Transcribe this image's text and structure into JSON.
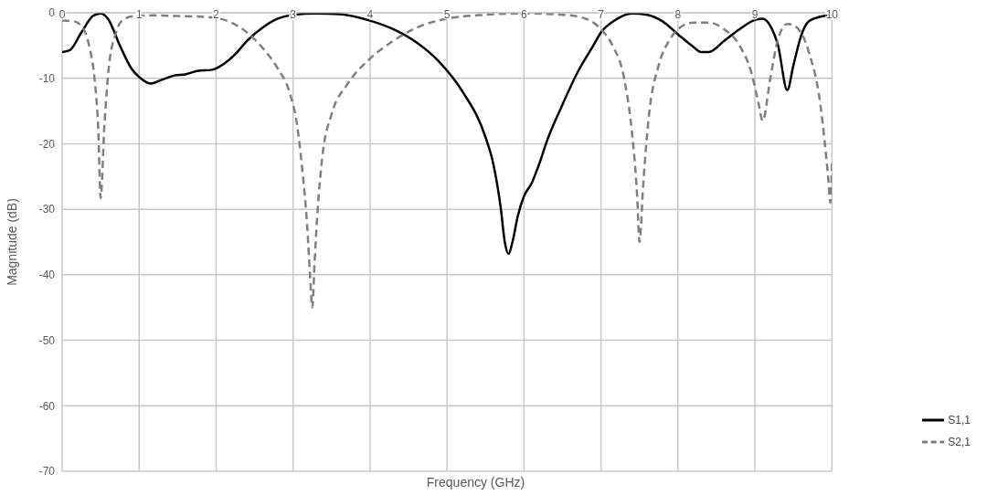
{
  "chart_data": {
    "type": "line",
    "xlabel": "Frequency (GHz)",
    "ylabel": "Magnitude (dB)",
    "xlim": [
      0,
      10
    ],
    "xticks": [
      0,
      1,
      2,
      3,
      4,
      5,
      6,
      7,
      8,
      9,
      10
    ],
    "ylim": [
      -70,
      0
    ],
    "yticks": [
      -70,
      -60,
      -50,
      -40,
      -30,
      -20,
      -10,
      0
    ],
    "grid": true,
    "legend": "right",
    "marker": "none",
    "series": [
      {
        "name": "S1,1",
        "color": "#000000",
        "line_style": "solid",
        "x": [
          0,
          0.1,
          0.25,
          0.4,
          0.5,
          0.6,
          0.75,
          0.9,
          1.0,
          1.15,
          1.3,
          1.45,
          1.6,
          1.75,
          1.95,
          2.1,
          2.25,
          2.4,
          2.6,
          2.8,
          3.0,
          3.3,
          3.6,
          4.0,
          4.3,
          4.6,
          4.9,
          5.2,
          5.5,
          5.6,
          5.7,
          5.75,
          5.8,
          5.85,
          5.92,
          6.0,
          6.1,
          6.2,
          6.3,
          6.5,
          6.7,
          6.9,
          7.0,
          7.2,
          7.4,
          7.6,
          7.8,
          8.0,
          8.2,
          8.3,
          8.4,
          8.6,
          8.8,
          9.0,
          9.1,
          9.2,
          9.3,
          9.42,
          9.5,
          9.6,
          9.7,
          9.85,
          10
        ],
        "values": [
          -6,
          -5.7,
          -3,
          -0.5,
          -0.1,
          -1,
          -5,
          -8.5,
          -9.8,
          -10.8,
          -10.2,
          -9.6,
          -9.4,
          -8.9,
          -8.7,
          -7.8,
          -6.3,
          -4.3,
          -2.3,
          -0.9,
          -0.3,
          -0.1,
          -0.2,
          -1.2,
          -2.5,
          -4.5,
          -7.5,
          -12,
          -19,
          -23,
          -30,
          -35,
          -36.8,
          -35,
          -31,
          -28,
          -26,
          -23,
          -19.5,
          -14,
          -9,
          -5,
          -3,
          -1,
          -0.1,
          -0.3,
          -1.3,
          -3.3,
          -5.2,
          -6,
          -6,
          -4.3,
          -2.5,
          -1.1,
          -0.9,
          -2,
          -5,
          -11.8,
          -8,
          -3.5,
          -1.3,
          -0.6,
          -0.3
        ]
      },
      {
        "name": "S2,1",
        "color": "#7f7f7f",
        "line_style": "dashed",
        "x": [
          0,
          0.15,
          0.25,
          0.35,
          0.42,
          0.47,
          0.5,
          0.55,
          0.6,
          0.7,
          0.8,
          0.95,
          1.2,
          1.5,
          1.8,
          2.0,
          2.2,
          2.4,
          2.6,
          2.8,
          2.95,
          3.05,
          3.12,
          3.18,
          3.22,
          3.25,
          3.28,
          3.32,
          3.38,
          3.5,
          3.7,
          4.0,
          4.3,
          4.6,
          5.0,
          5.5,
          6.0,
          6.5,
          6.8,
          7.0,
          7.15,
          7.3,
          7.4,
          7.47,
          7.5,
          7.55,
          7.62,
          7.75,
          7.9,
          8.0,
          8.2,
          8.4,
          8.6,
          8.8,
          8.95,
          9.05,
          9.1,
          9.2,
          9.3,
          9.42,
          9.55,
          9.7,
          9.85,
          9.95,
          9.98,
          10
        ],
        "values": [
          -1.2,
          -1.3,
          -2,
          -5,
          -10,
          -18,
          -28.3,
          -17,
          -9,
          -3,
          -1,
          -0.5,
          -0.4,
          -0.5,
          -0.6,
          -0.8,
          -1.5,
          -3,
          -5.3,
          -8.5,
          -12,
          -17,
          -24,
          -32,
          -40,
          -45,
          -38,
          -30,
          -22,
          -15.5,
          -11,
          -7,
          -4.3,
          -2.3,
          -0.9,
          -0.3,
          -0.1,
          -0.3,
          -0.9,
          -2.5,
          -5,
          -10,
          -18,
          -28,
          -35,
          -26,
          -16,
          -8,
          -4,
          -2.5,
          -1.5,
          -1.5,
          -2.5,
          -5,
          -9,
          -14,
          -16.5,
          -10,
          -4,
          -1.7,
          -2.3,
          -6,
          -14,
          -25,
          -29,
          -23
        ]
      }
    ]
  }
}
